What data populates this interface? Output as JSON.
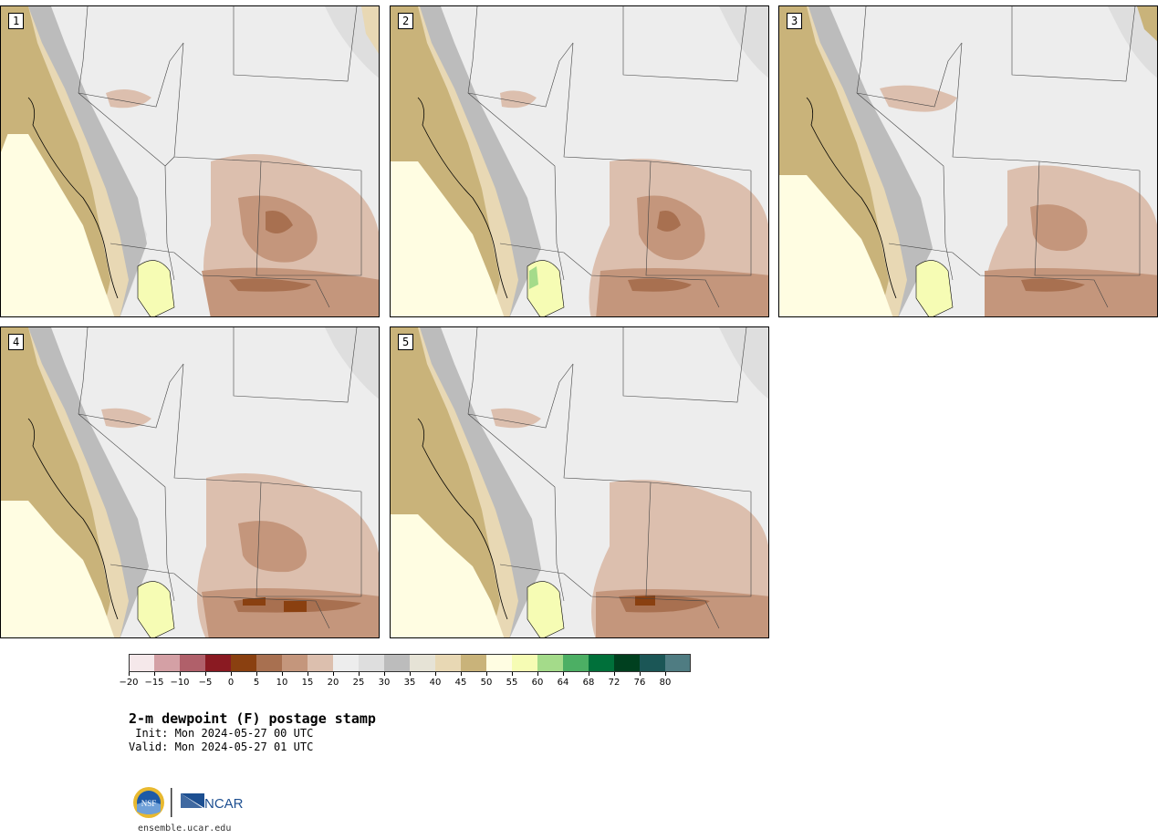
{
  "panels": [
    {
      "label": "1"
    },
    {
      "label": "2"
    },
    {
      "label": "3"
    },
    {
      "label": "4"
    },
    {
      "label": "5"
    }
  ],
  "colorbar": {
    "ticks": [
      "−20",
      "−15",
      "−10",
      "−5",
      "0",
      "5",
      "10",
      "15",
      "20",
      "25",
      "30",
      "35",
      "40",
      "45",
      "50",
      "55",
      "60",
      "64",
      "68",
      "72",
      "76",
      "80"
    ],
    "colors": [
      "#f5e8ea",
      "#d4a0a5",
      "#b0606a",
      "#8a1a22",
      "#8a4010",
      "#a87050",
      "#c4967c",
      "#dcbfae",
      "#ededed",
      "#dedede",
      "#bcbcbc",
      "#e6e3d6",
      "#e8d8b4",
      "#c9b37a",
      "#fffde2",
      "#f6fcb4",
      "#a4db8a",
      "#4caf64",
      "#00703a",
      "#00401f",
      "#1b5656",
      "#4f7c82"
    ]
  },
  "title": "2-m dewpoint (F) postage stamp",
  "init": " Init: Mon 2024-05-27 00 UTC",
  "valid": "Valid: Mon 2024-05-27 01 UTC",
  "logos": {
    "nsf": "NSF",
    "ncar": "NCAR"
  },
  "site": "ensemble.ucar.edu"
}
